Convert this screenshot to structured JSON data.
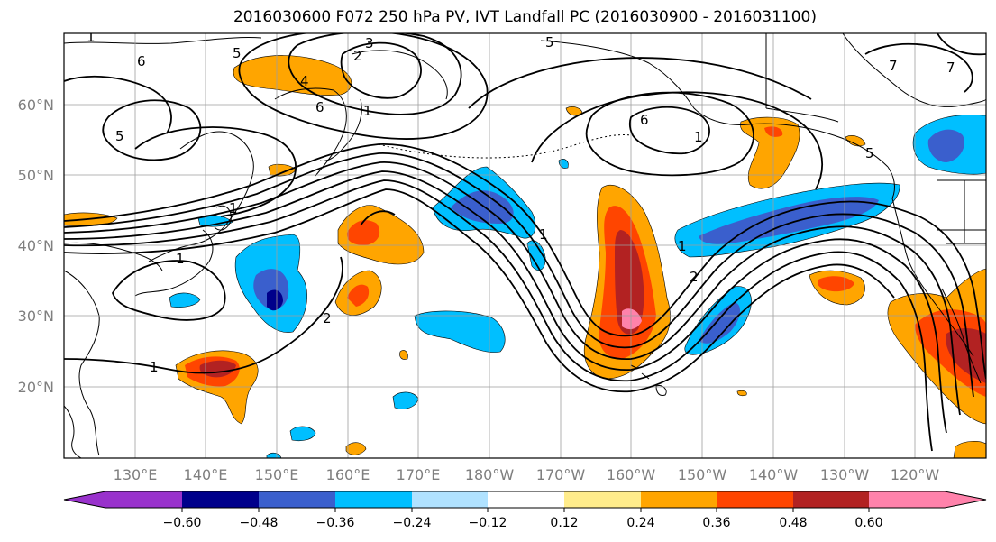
{
  "title": "2016030600 F072 250 hPa PV, IVT Landfall PC (2016030900 - 2016031100)",
  "lat_ticks": [
    "60°N",
    "50°N",
    "40°N",
    "30°N",
    "20°N"
  ],
  "lon_ticks": [
    "130°E",
    "140°E",
    "150°E",
    "160°E",
    "170°E",
    "180°W",
    "170°W",
    "160°W",
    "150°W",
    "140°W",
    "130°W",
    "120°W"
  ],
  "contour_labels": [
    "6",
    "2",
    "3",
    "1",
    "5",
    "4",
    "6",
    "5",
    "1",
    "5",
    "6",
    "1",
    "1",
    "2",
    "1",
    "1",
    "1",
    "2",
    "5",
    "7",
    "7",
    "1"
  ],
  "colorbar": {
    "labels": [
      "−0.60",
      "−0.48",
      "−0.36",
      "−0.24",
      "−0.12",
      "0.12",
      "0.24",
      "0.36",
      "0.48",
      "0.60"
    ],
    "colors": {
      "under": "#9932cc",
      "b1": "#00008b",
      "b2": "#3a5fcd",
      "b3": "#00bfff",
      "b4": "#b0e2ff",
      "b5": "#ffffff",
      "b6": "#ffec8b",
      "b7": "#ffa500",
      "b8": "#ff4500",
      "b9": "#b22222",
      "over": "#ff82ab"
    }
  }
}
